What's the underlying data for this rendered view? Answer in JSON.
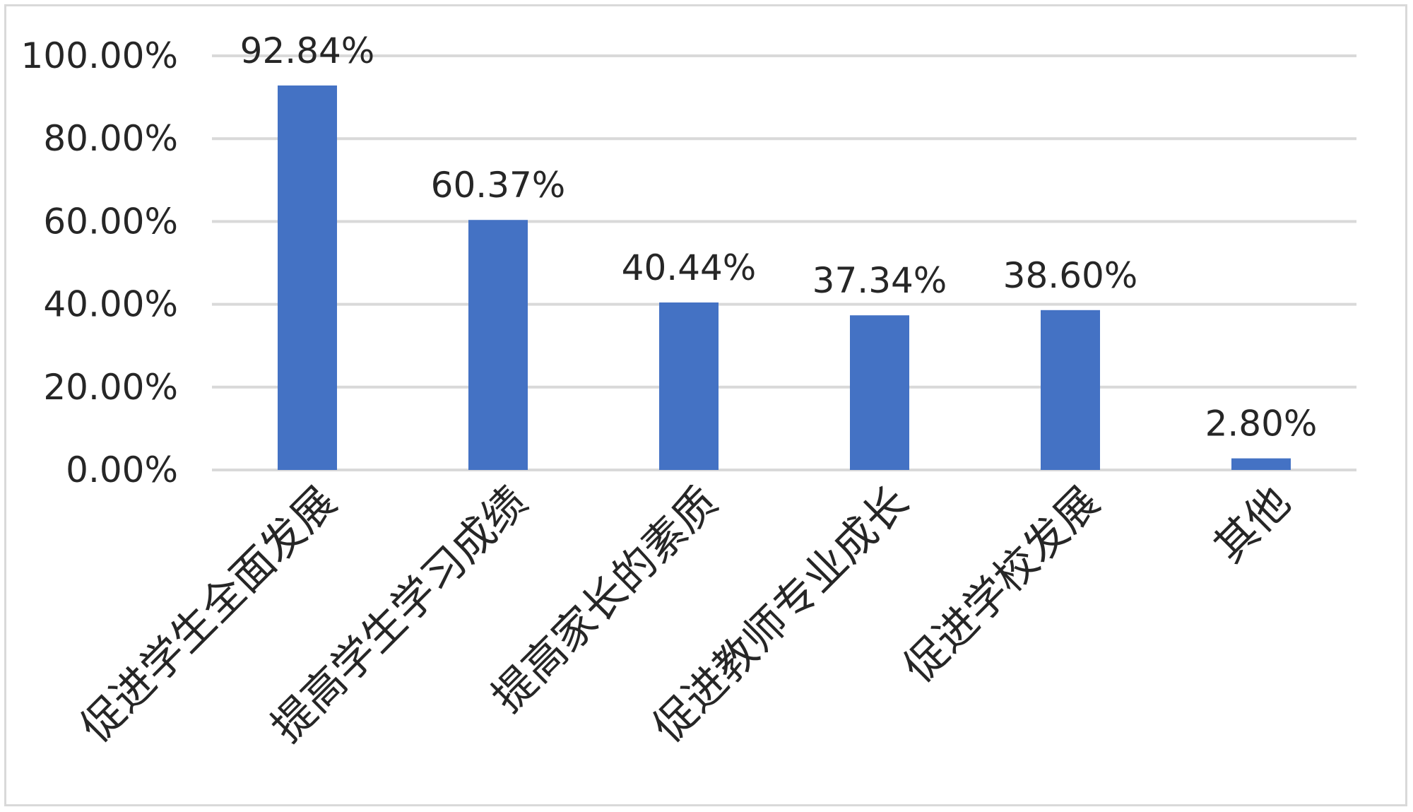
{
  "chart_data": {
    "type": "bar",
    "categories": [
      "促进学生全面发展",
      "提高学生学习成绩",
      "提高家长的素质",
      "促进教师专业成长",
      "促进学校发展",
      "其他"
    ],
    "values": [
      92.84,
      60.37,
      40.44,
      37.34,
      38.6,
      2.8
    ],
    "value_labels": [
      "92.84%",
      "60.37%",
      "40.44%",
      "37.34%",
      "38.60%",
      "2.80%"
    ],
    "y_ticks": [
      0,
      20,
      40,
      60,
      80,
      100
    ],
    "y_tick_labels": [
      "0.00%",
      "20.00%",
      "40.00%",
      "60.00%",
      "80.00%",
      "100.00%"
    ],
    "ylim": [
      0,
      100
    ],
    "grid": true,
    "bar_color": "#4472c4",
    "grid_color": "#d9d9d9",
    "text_color": "#262626"
  }
}
